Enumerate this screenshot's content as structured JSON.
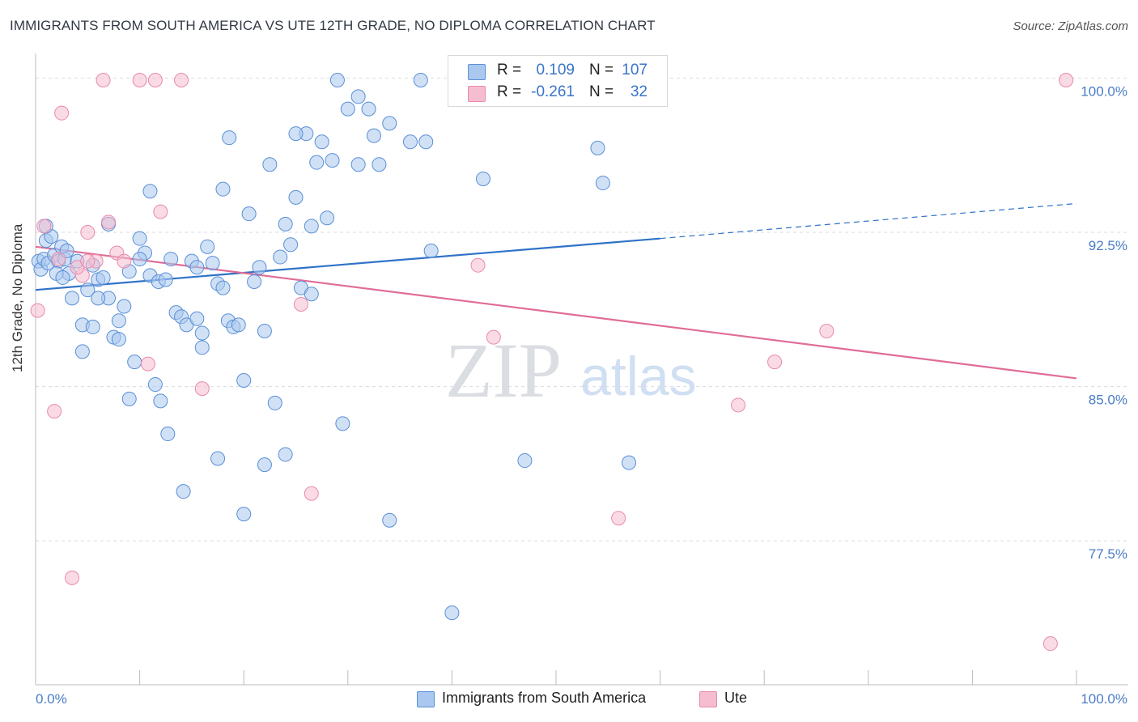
{
  "title": "IMMIGRANTS FROM SOUTH AMERICA VS UTE 12TH GRADE, NO DIPLOMA CORRELATION CHART",
  "source": "Source: ZipAtlas.com",
  "watermark": {
    "zip": "ZIP",
    "atlas": "atlas"
  },
  "legend": {
    "rows": [
      {
        "r_label": "R =",
        "r_value": "0.109",
        "n_label": "N =",
        "n_value": "107"
      },
      {
        "r_label": "R =",
        "r_value": "-0.261",
        "n_label": "N =",
        "n_value": "32"
      }
    ]
  },
  "bottom_legend": {
    "series1": "Immigrants from South America",
    "series2": "Ute"
  },
  "colors": {
    "series1_fill": "#aac8ef",
    "series1_stroke": "#5a8fd6",
    "series1_line": "#2f72c8",
    "series2_fill": "#f6bdd0",
    "series2_stroke": "#e88aab",
    "series2_line": "#e06c98",
    "tick_text": "#4a7cc7",
    "grid": "#d7dbe0"
  },
  "chart_data": {
    "type": "scatter",
    "title": "IMMIGRANTS FROM SOUTH AMERICA VS UTE 12TH GRADE, NO DIPLOMA CORRELATION CHART",
    "xlabel": "",
    "ylabel": "12th Grade, No Diploma",
    "xlim": [
      0,
      100
    ],
    "ylim": [
      70.5,
      101.2
    ],
    "x_tick_labels": [
      "0.0%",
      "100.0%"
    ],
    "y_ticks": [
      77.5,
      85.0,
      92.5,
      100.0
    ],
    "y_tick_labels": [
      "77.5%",
      "85.0%",
      "92.5%",
      "100.0%"
    ],
    "grid": "horizontal dashed",
    "legend_position": "top-center",
    "series": [
      {
        "name": "Immigrants from South America",
        "points": [
          [
            0.3,
            91.1
          ],
          [
            0.5,
            90.7
          ],
          [
            0.8,
            91.2
          ],
          [
            1.0,
            92.1
          ],
          [
            1.2,
            91.0
          ],
          [
            1.5,
            92.3
          ],
          [
            1.8,
            91.4
          ],
          [
            2.2,
            91.1
          ],
          [
            2.5,
            91.8
          ],
          [
            2.8,
            91.2
          ],
          [
            3.2,
            90.5
          ],
          [
            3.5,
            89.3
          ],
          [
            4.0,
            91.1
          ],
          [
            4.5,
            88.0
          ],
          [
            5.0,
            89.7
          ],
          [
            5.5,
            90.9
          ],
          [
            6.0,
            90.2
          ],
          [
            6.5,
            90.3
          ],
          [
            7.0,
            89.3
          ],
          [
            7.5,
            87.4
          ],
          [
            8.0,
            88.2
          ],
          [
            8.5,
            88.9
          ],
          [
            9.0,
            90.6
          ],
          [
            9.5,
            86.2
          ],
          [
            10.0,
            92.2
          ],
          [
            10.5,
            91.5
          ],
          [
            11.0,
            90.4
          ],
          [
            11.5,
            85.1
          ],
          [
            11.8,
            90.1
          ],
          [
            12.5,
            90.2
          ],
          [
            13.0,
            91.2
          ],
          [
            13.5,
            88.6
          ],
          [
            14.0,
            88.4
          ],
          [
            14.5,
            88.0
          ],
          [
            15.0,
            91.1
          ],
          [
            15.5,
            90.8
          ],
          [
            16.0,
            87.6
          ],
          [
            16.5,
            91.8
          ],
          [
            17.0,
            91.0
          ],
          [
            17.5,
            90.0
          ],
          [
            18.0,
            89.8
          ],
          [
            18.5,
            88.2
          ],
          [
            19.0,
            87.9
          ],
          [
            19.5,
            88.0
          ],
          [
            20.0,
            85.3
          ],
          [
            20.5,
            93.4
          ],
          [
            21.0,
            90.1
          ],
          [
            21.5,
            90.8
          ],
          [
            22.0,
            81.2
          ],
          [
            22.5,
            95.8
          ],
          [
            23.0,
            84.2
          ],
          [
            23.5,
            91.3
          ],
          [
            24.0,
            81.7
          ],
          [
            24.5,
            91.9
          ],
          [
            25.0,
            94.2
          ],
          [
            25.5,
            89.8
          ],
          [
            26.0,
            97.3
          ],
          [
            26.5,
            89.5
          ],
          [
            27.0,
            95.9
          ],
          [
            27.5,
            96.9
          ],
          [
            28.0,
            93.2
          ],
          [
            28.5,
            96.0
          ],
          [
            29.0,
            99.9
          ],
          [
            30.0,
            98.5
          ],
          [
            31.0,
            99.1
          ],
          [
            32.0,
            98.5
          ],
          [
            32.5,
            97.2
          ],
          [
            33.0,
            95.8
          ],
          [
            34.0,
            97.8
          ],
          [
            36.0,
            96.9
          ],
          [
            37.0,
            99.9
          ],
          [
            38.0,
            91.6
          ],
          [
            40.0,
            74.0
          ],
          [
            43.0,
            95.1
          ],
          [
            47.0,
            81.4
          ],
          [
            54.0,
            96.6
          ],
          [
            54.5,
            94.9
          ],
          [
            57.0,
            81.3
          ],
          [
            2.0,
            90.5
          ],
          [
            3.0,
            91.6
          ],
          [
            4.5,
            86.7
          ],
          [
            6.0,
            89.3
          ],
          [
            7.0,
            92.9
          ],
          [
            8.0,
            87.3
          ],
          [
            9.0,
            84.4
          ],
          [
            10.0,
            91.2
          ],
          [
            11.0,
            94.5
          ],
          [
            12.0,
            84.3
          ],
          [
            12.7,
            82.7
          ],
          [
            14.2,
            79.9
          ],
          [
            15.5,
            88.3
          ],
          [
            16.0,
            86.9
          ],
          [
            17.5,
            81.5
          ],
          [
            18.0,
            94.6
          ],
          [
            18.6,
            97.1
          ],
          [
            20.0,
            78.8
          ],
          [
            22.0,
            87.7
          ],
          [
            24.0,
            92.9
          ],
          [
            25.0,
            97.3
          ],
          [
            26.5,
            92.8
          ],
          [
            29.5,
            83.2
          ],
          [
            31.0,
            95.8
          ],
          [
            34.0,
            78.5
          ],
          [
            37.5,
            96.9
          ],
          [
            1.0,
            92.8
          ],
          [
            2.6,
            90.3
          ],
          [
            5.5,
            87.9
          ]
        ]
      },
      {
        "name": "Ute",
        "points": [
          [
            0.2,
            88.7
          ],
          [
            0.8,
            92.8
          ],
          [
            1.8,
            83.8
          ],
          [
            2.5,
            98.3
          ],
          [
            3.5,
            75.7
          ],
          [
            4.5,
            90.4
          ],
          [
            5.0,
            92.5
          ],
          [
            5.8,
            91.1
          ],
          [
            6.5,
            99.9
          ],
          [
            7.0,
            93.0
          ],
          [
            7.8,
            91.5
          ],
          [
            8.5,
            91.1
          ],
          [
            10.0,
            99.9
          ],
          [
            10.8,
            86.1
          ],
          [
            11.5,
            99.9
          ],
          [
            12.0,
            93.5
          ],
          [
            14.0,
            99.9
          ],
          [
            16.0,
            84.9
          ],
          [
            25.5,
            89.0
          ],
          [
            26.5,
            79.8
          ],
          [
            42.5,
            90.9
          ],
          [
            44.0,
            87.4
          ],
          [
            52.5,
            99.9
          ],
          [
            56.0,
            78.6
          ],
          [
            67.5,
            84.1
          ],
          [
            71.0,
            86.2
          ],
          [
            76.0,
            87.7
          ],
          [
            97.5,
            72.5
          ],
          [
            99.0,
            99.9
          ],
          [
            2.2,
            91.2
          ],
          [
            4.0,
            90.8
          ],
          [
            5.0,
            91.1
          ]
        ]
      }
    ],
    "trend_lines": [
      {
        "name": "Immigrants from South America",
        "x": [
          0,
          60,
          100
        ],
        "y": [
          89.7,
          92.2,
          93.9
        ],
        "dashed_after_x": 60
      },
      {
        "name": "Ute",
        "x": [
          0,
          100
        ],
        "y": [
          91.8,
          85.4
        ]
      }
    ]
  }
}
